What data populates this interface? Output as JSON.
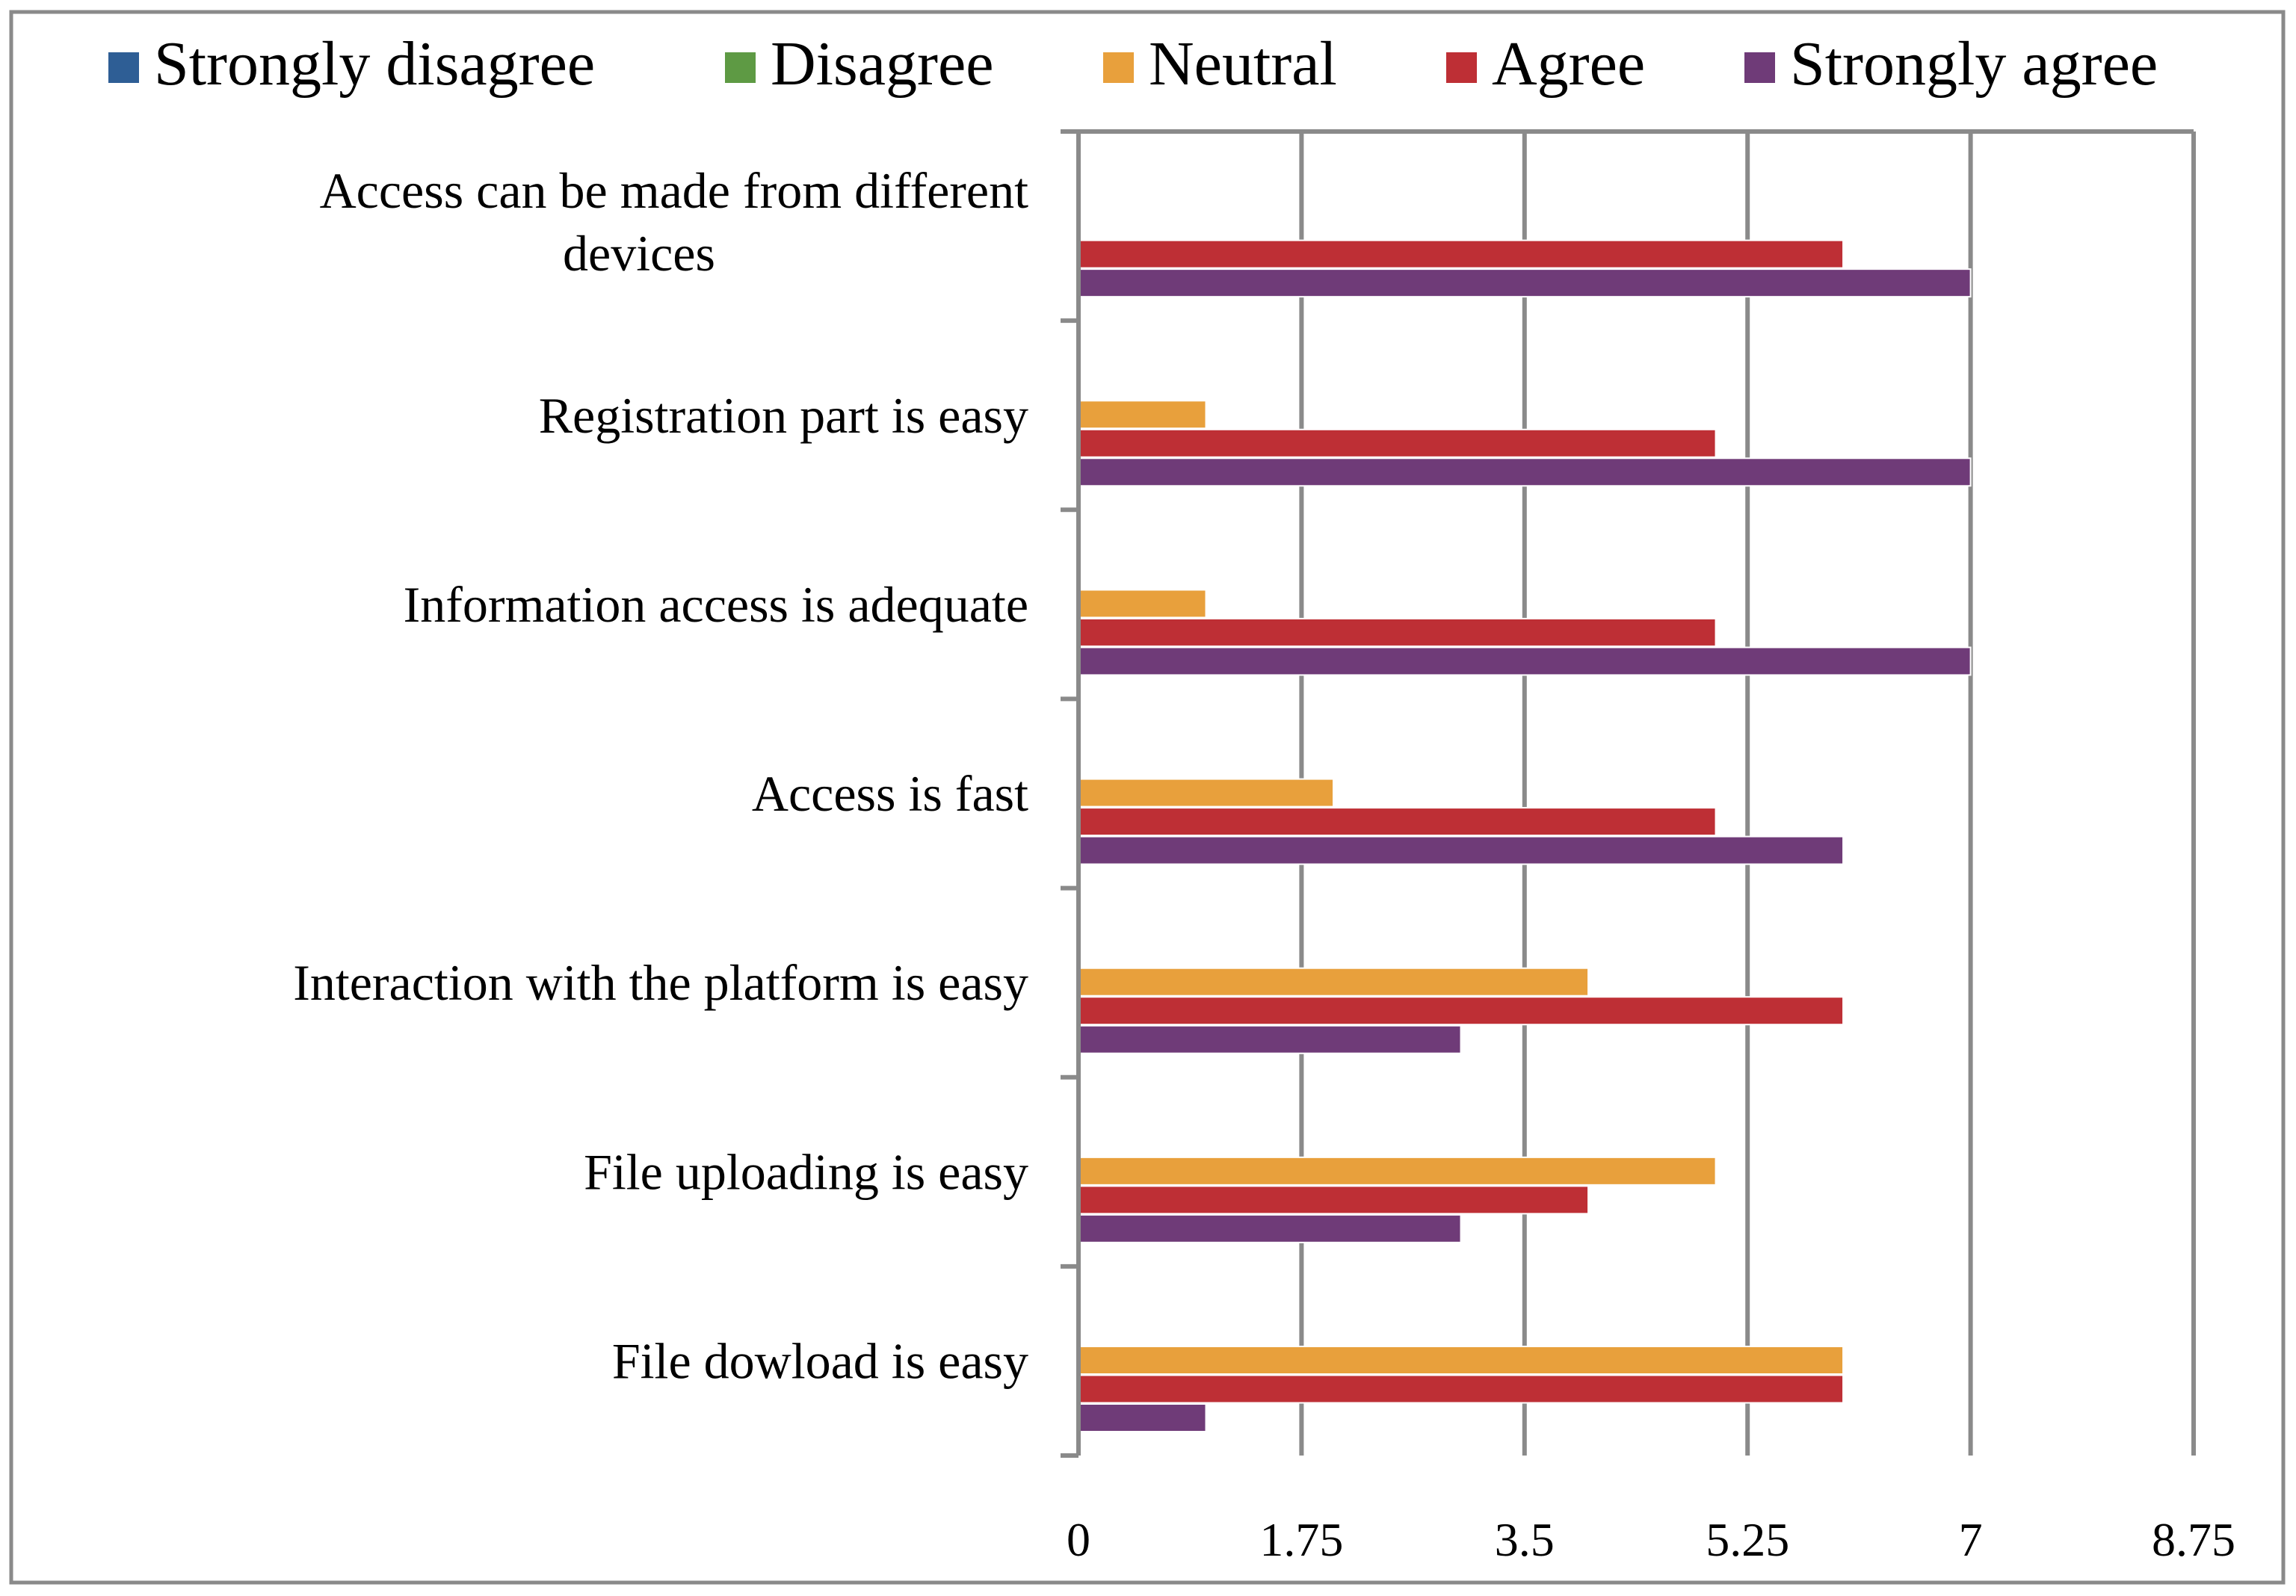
{
  "chart_data": {
    "type": "bar",
    "orientation": "horizontal",
    "title": "",
    "xlabel": "",
    "ylabel": "",
    "xlim": [
      0,
      8.75
    ],
    "xticks": [
      "0",
      "1.75",
      "3.5",
      "5.25",
      "7",
      "8.75"
    ],
    "grid": true,
    "legend_position": "top",
    "categories": [
      [
        "Access can be made from different",
        "devices"
      ],
      [
        "Registration part is easy"
      ],
      [
        "Information access is adequate"
      ],
      [
        "Access is fast"
      ],
      [
        "Interaction with the platform is easy"
      ],
      [
        "File uploading is easy"
      ],
      [
        "File dowload is easy"
      ]
    ],
    "series": [
      {
        "name": "Strongly disagree",
        "color": "#2E5E95",
        "values": [
          0,
          0,
          0,
          0,
          0,
          0,
          0
        ]
      },
      {
        "name": "Disagree",
        "color": "#5E9A44",
        "values": [
          0,
          0,
          0,
          0,
          0,
          0,
          0
        ]
      },
      {
        "name": "Neutral",
        "color": "#E8A03C",
        "values": [
          0,
          1,
          1,
          2,
          4,
          5,
          6
        ]
      },
      {
        "name": "Agree",
        "color": "#BE2F35",
        "values": [
          6,
          5,
          5,
          5,
          6,
          4,
          6
        ]
      },
      {
        "name": "Strongly agree",
        "color": "#6F3B78",
        "values": [
          7,
          7,
          7,
          6,
          3,
          3,
          1
        ]
      }
    ]
  }
}
